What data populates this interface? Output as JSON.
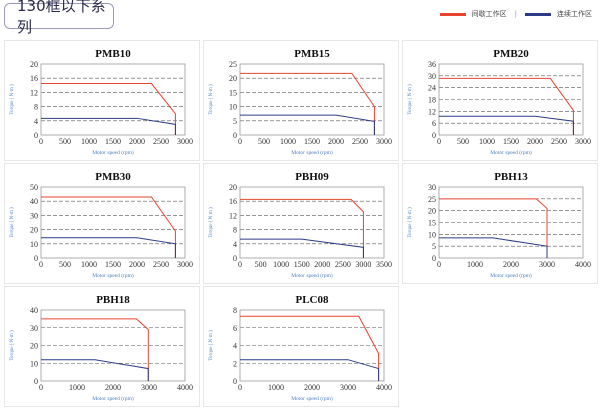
{
  "header": {
    "title": "130框以下系列"
  },
  "legend": [
    {
      "label": "间歇工作区",
      "color": "#e8442e"
    },
    {
      "label": "连续工作区",
      "color": "#2c3b87"
    }
  ],
  "chart_data": [
    {
      "type": "line",
      "title": "PMB10",
      "xlabel": "Motor speed (rpm)",
      "ylabel": "Torque ( N·m )",
      "xlim": [
        0,
        3000
      ],
      "xstep": 500,
      "ylim": [
        0,
        20
      ],
      "ystep": 4,
      "series": [
        {
          "values": [
            [
              0,
              14.5
            ],
            [
              2300,
              14.5
            ],
            [
              2800,
              6
            ],
            [
              2800,
              0
            ]
          ],
          "color": "#e8442e"
        },
        {
          "values": [
            [
              0,
              4.7
            ],
            [
              2000,
              4.7
            ],
            [
              2800,
              3
            ],
            [
              2800,
              0
            ]
          ],
          "color": "#2c3b87"
        }
      ]
    },
    {
      "type": "line",
      "title": "PMB15",
      "xlabel": "Motor speed (rpm)",
      "ylabel": "Torque ( N·m )",
      "xlim": [
        0,
        3000
      ],
      "xstep": 500,
      "ylim": [
        0,
        25
      ],
      "ystep": 5,
      "series": [
        {
          "values": [
            [
              0,
              21.7
            ],
            [
              2330,
              21.7
            ],
            [
              2800,
              10
            ],
            [
              2800,
              0
            ]
          ],
          "color": "#e8442e"
        },
        {
          "values": [
            [
              0,
              7
            ],
            [
              2000,
              7
            ],
            [
              2800,
              4.8
            ],
            [
              2800,
              0
            ]
          ],
          "color": "#2c3b87"
        }
      ]
    },
    {
      "type": "line",
      "title": "PMB20",
      "xlabel": "Motor speed (rpm)",
      "ylabel": "Torque ( N·m )",
      "xlim": [
        0,
        3000
      ],
      "xstep": 500,
      "ylim": [
        0,
        36
      ],
      "ystep": 6,
      "series": [
        {
          "values": [
            [
              0,
              28.7
            ],
            [
              2320,
              28.7
            ],
            [
              2800,
              12.5
            ],
            [
              2800,
              0
            ]
          ],
          "color": "#e8442e"
        },
        {
          "values": [
            [
              0,
              9.5
            ],
            [
              2000,
              9.5
            ],
            [
              2800,
              7
            ],
            [
              2800,
              0
            ]
          ],
          "color": "#2c3b87"
        }
      ]
    },
    {
      "type": "line",
      "title": "PMB30",
      "xlabel": "Motor speed (rpm)",
      "ylabel": "Torque ( N·m )",
      "xlim": [
        0,
        3000
      ],
      "xstep": 500,
      "ylim": [
        0,
        50
      ],
      "ystep": 10,
      "series": [
        {
          "values": [
            [
              0,
              43
            ],
            [
              2300,
              43
            ],
            [
              2800,
              19
            ],
            [
              2800,
              0
            ]
          ],
          "color": "#e8442e"
        },
        {
          "values": [
            [
              0,
              14.3
            ],
            [
              2000,
              14.3
            ],
            [
              2800,
              10
            ],
            [
              2800,
              0
            ]
          ],
          "color": "#2c3b87"
        }
      ]
    },
    {
      "type": "line",
      "title": "PBH09",
      "xlabel": "Motor speed (rpm)",
      "ylabel": "Torque ( N·m )",
      "xlim": [
        0,
        3500
      ],
      "xstep": 500,
      "ylim": [
        0,
        20
      ],
      "ystep": 4,
      "series": [
        {
          "values": [
            [
              0,
              16.5
            ],
            [
              2700,
              16.5
            ],
            [
              3000,
              13
            ],
            [
              3000,
              0
            ]
          ],
          "color": "#e8442e"
        },
        {
          "values": [
            [
              0,
              5.3
            ],
            [
              1500,
              5.3
            ],
            [
              3000,
              3
            ],
            [
              3000,
              0
            ]
          ],
          "color": "#2c3b87"
        }
      ]
    },
    {
      "type": "line",
      "title": "PBH13",
      "xlabel": "Motor speed (rpm)",
      "ylabel": "Torque ( N·m )",
      "xlim": [
        0,
        4000
      ],
      "xstep": 1000,
      "ylim": [
        0,
        30
      ],
      "ystep": 5,
      "series": [
        {
          "values": [
            [
              0,
              25
            ],
            [
              2700,
              25
            ],
            [
              3000,
              21
            ],
            [
              3000,
              0
            ]
          ],
          "color": "#e8442e"
        },
        {
          "values": [
            [
              0,
              8.5
            ],
            [
              1500,
              8.5
            ],
            [
              3000,
              5
            ],
            [
              3000,
              0
            ]
          ],
          "color": "#2c3b87"
        }
      ]
    },
    {
      "type": "line",
      "title": "PBH18",
      "xlabel": "Motor speed (rpm)",
      "ylabel": "Torque ( N·m )",
      "xlim": [
        0,
        4000
      ],
      "xstep": 1000,
      "ylim": [
        0,
        40
      ],
      "ystep": 10,
      "series": [
        {
          "values": [
            [
              0,
              35
            ],
            [
              2650,
              35
            ],
            [
              2980,
              29
            ],
            [
              2980,
              0
            ]
          ],
          "color": "#e8442e"
        },
        {
          "values": [
            [
              0,
              12
            ],
            [
              1500,
              12
            ],
            [
              2980,
              7
            ],
            [
              2980,
              0
            ]
          ],
          "color": "#2c3b87"
        }
      ]
    },
    {
      "type": "line",
      "title": "PLC08",
      "xlabel": "Motor speed (rpm)",
      "ylabel": "Torque ( N·m )",
      "xlim": [
        0,
        4000
      ],
      "xstep": 1000,
      "ylim": [
        0,
        8
      ],
      "ystep": 2,
      "series": [
        {
          "values": [
            [
              0,
              7.3
            ],
            [
              3300,
              7.3
            ],
            [
              3850,
              3.1
            ],
            [
              3850,
              0
            ]
          ],
          "color": "#e8442e"
        },
        {
          "values": [
            [
              0,
              2.4
            ],
            [
              3000,
              2.4
            ],
            [
              3850,
              1.4
            ],
            [
              3850,
              0
            ]
          ],
          "color": "#2c3b87"
        }
      ]
    }
  ]
}
